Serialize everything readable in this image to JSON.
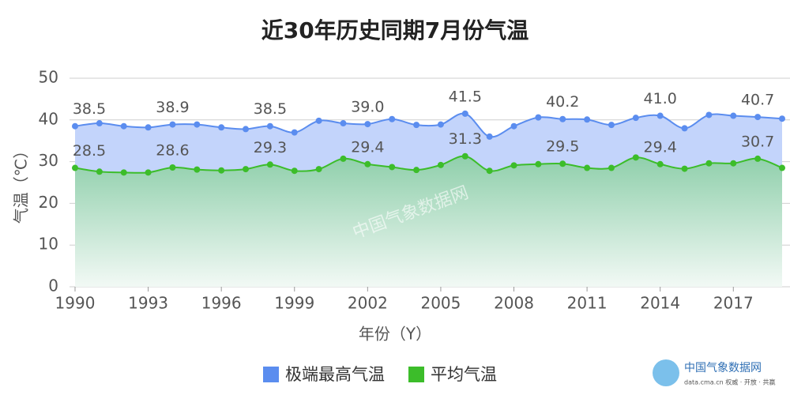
{
  "chart_data": {
    "type": "area",
    "title": "近30年历史同期7月份气温",
    "xlabel": "年份（Y）",
    "ylabel": "气温（℃）",
    "x": [
      1990,
      1991,
      1992,
      1993,
      1994,
      1995,
      1996,
      1997,
      1998,
      1999,
      2000,
      2001,
      2002,
      2003,
      2004,
      2005,
      2006,
      2007,
      2008,
      2009,
      2010,
      2011,
      2012,
      2013,
      2014,
      2015,
      2016,
      2017,
      2018,
      2019
    ],
    "xlim": [
      1990,
      2019
    ],
    "xticks": [
      1990,
      1993,
      1996,
      1999,
      2002,
      2005,
      2008,
      2011,
      2014,
      2017
    ],
    "ylim": [
      0,
      50
    ],
    "yticks": [
      0,
      10,
      20,
      30,
      40,
      50
    ],
    "grid": true,
    "legend": "bottom",
    "series": [
      {
        "name": "极端最高气温",
        "color": "#5b8def",
        "fill": "#c3d4fb",
        "values": [
          38.5,
          39.2,
          38.5,
          38.2,
          38.9,
          38.9,
          38.2,
          37.8,
          38.5,
          37.0,
          39.8,
          39.2,
          39.0,
          40.2,
          38.8,
          38.9,
          41.5,
          36.0,
          38.5,
          40.6,
          40.2,
          40.1,
          38.8,
          40.5,
          41.0,
          38.0,
          41.2,
          41.0,
          40.7,
          40.3
        ],
        "value_labels": [
          "38.5",
          null,
          null,
          null,
          "38.9",
          null,
          null,
          null,
          "38.5",
          null,
          null,
          null,
          "39.0",
          null,
          null,
          null,
          "41.5",
          null,
          null,
          null,
          "40.2",
          null,
          null,
          null,
          "41.0",
          null,
          null,
          null,
          "40.7",
          null
        ]
      },
      {
        "name": "平均气温",
        "color": "#3cbd2a",
        "fill": "#8fcfab",
        "values": [
          28.5,
          27.6,
          27.4,
          27.4,
          28.6,
          28.1,
          27.9,
          28.2,
          29.3,
          27.8,
          28.2,
          30.7,
          29.4,
          28.7,
          28.0,
          29.2,
          31.3,
          27.8,
          29.1,
          29.4,
          29.5,
          28.5,
          28.5,
          31.0,
          29.4,
          28.3,
          29.6,
          29.6,
          30.7,
          28.5
        ],
        "value_labels": [
          "28.5",
          null,
          null,
          null,
          "28.6",
          null,
          null,
          null,
          "29.3",
          null,
          null,
          null,
          "29.4",
          null,
          null,
          null,
          "31.3",
          null,
          null,
          null,
          "29.5",
          null,
          null,
          null,
          "29.4",
          null,
          null,
          null,
          "30.7",
          null
        ]
      }
    ],
    "watermark": "中国气象数据网",
    "logo_title": "中国气象数据网",
    "logo_subtitle": "data.cma.cn  权威 · 开放 · 共赢"
  }
}
